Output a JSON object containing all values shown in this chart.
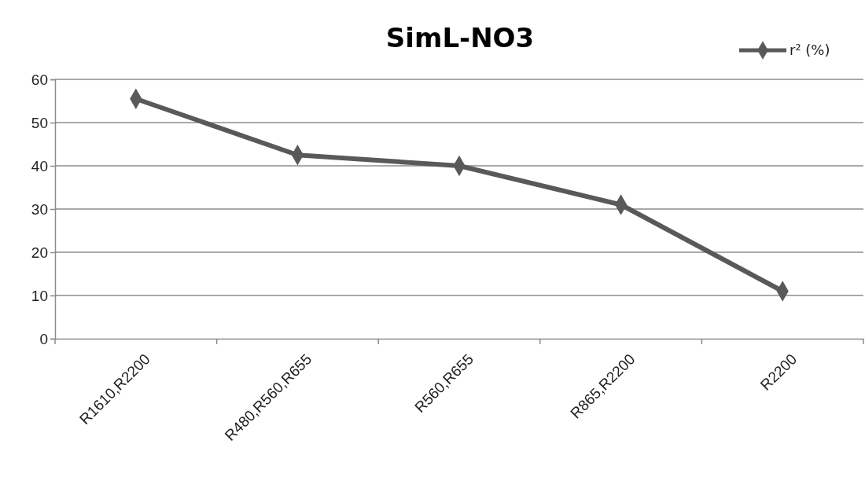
{
  "chart_data": {
    "type": "line",
    "title": "SimL-NO3",
    "categories": [
      "R1610,R2200",
      "R480,R560,R655",
      "R560,R655",
      "R865,R2200",
      "R2200"
    ],
    "series": [
      {
        "name": "r² (%)",
        "color": "#595959",
        "values": [
          55.5,
          42.5,
          40,
          31,
          11
        ]
      }
    ],
    "ylim": [
      0,
      60
    ],
    "yticks": [
      0,
      10,
      20,
      30,
      40,
      50,
      60
    ],
    "grid": "y",
    "legend": "top right",
    "marker": "diamond",
    "line_style": "solid"
  }
}
